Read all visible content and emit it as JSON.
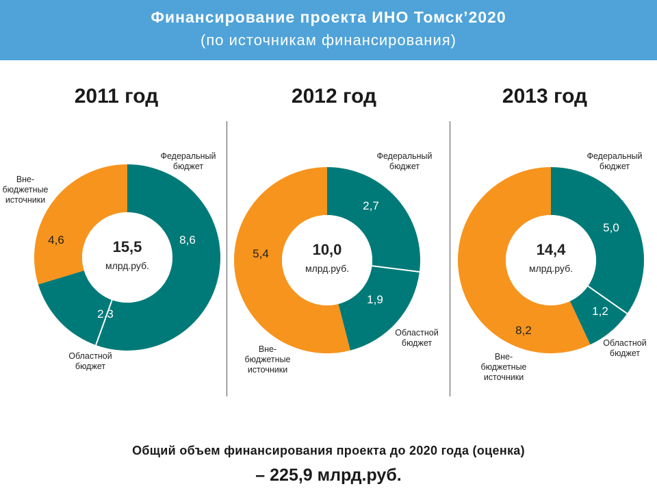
{
  "header": {
    "title": "Финансирование проекта ИНО Томск’2020",
    "subtitle": "(по источникам финансирования)"
  },
  "footer": {
    "line1": "Общий объем финансирования проекта до 2020 года (оценка)",
    "line2": "– 225,9 млрд.руб."
  },
  "colors": {
    "teal": "#007a78",
    "orange": "#f7941d",
    "header": "#4fa3d9"
  },
  "chart_data": [
    {
      "type": "pie",
      "title": "2011 год",
      "total_value": "15,5",
      "total_unit": "млрд.руб.",
      "slices": [
        {
          "name": "Федеральный бюджет",
          "value": 8.6,
          "label": "8,6",
          "color": "#007a78"
        },
        {
          "name": "Областной бюджет",
          "value": 2.3,
          "label": "2,3",
          "color": "#007a78"
        },
        {
          "name": "Вне-бюджетные источники",
          "value": 4.6,
          "label": "4,6",
          "color": "#f7941d"
        }
      ]
    },
    {
      "type": "pie",
      "title": "2012 год",
      "total_value": "10,0",
      "total_unit": "млрд.руб.",
      "slices": [
        {
          "name": "Федеральный бюджет",
          "value": 2.7,
          "label": "2,7",
          "color": "#007a78"
        },
        {
          "name": "Областной бюджет",
          "value": 1.9,
          "label": "1,9",
          "color": "#007a78"
        },
        {
          "name": "Вне-бюджетные источники",
          "value": 5.4,
          "label": "5,4",
          "color": "#f7941d"
        }
      ]
    },
    {
      "type": "pie",
      "title": "2013 год",
      "total_value": "14,4",
      "total_unit": "млрд.руб.",
      "slices": [
        {
          "name": "Федеральный бюджет",
          "value": 5.0,
          "label": "5,0",
          "color": "#007a78"
        },
        {
          "name": "Областной бюджет",
          "value": 1.2,
          "label": "1,2",
          "color": "#007a78"
        },
        {
          "name": "Вне-бюджетные источники",
          "value": 8.2,
          "label": "8,2",
          "color": "#f7941d"
        }
      ]
    }
  ],
  "series_labels": [
    {
      "federal": [
        "Федеральный",
        "бюджет"
      ],
      "regional": [
        "Областной",
        "бюджет"
      ],
      "offbudget": [
        "Вне-",
        "бюджетные",
        "источники"
      ]
    },
    {
      "federal": [
        "Федеральный",
        "бюджет"
      ],
      "regional": [
        "Областной",
        "бюджет"
      ],
      "offbudget": [
        "Вне-",
        "бюджетные",
        "источники"
      ]
    },
    {
      "federal": [
        "Федеральный",
        "бюджет"
      ],
      "regional": [
        "Областной",
        "бюджет"
      ],
      "offbudget": [
        "Вне-",
        "бюджетные",
        "источники"
      ]
    }
  ]
}
